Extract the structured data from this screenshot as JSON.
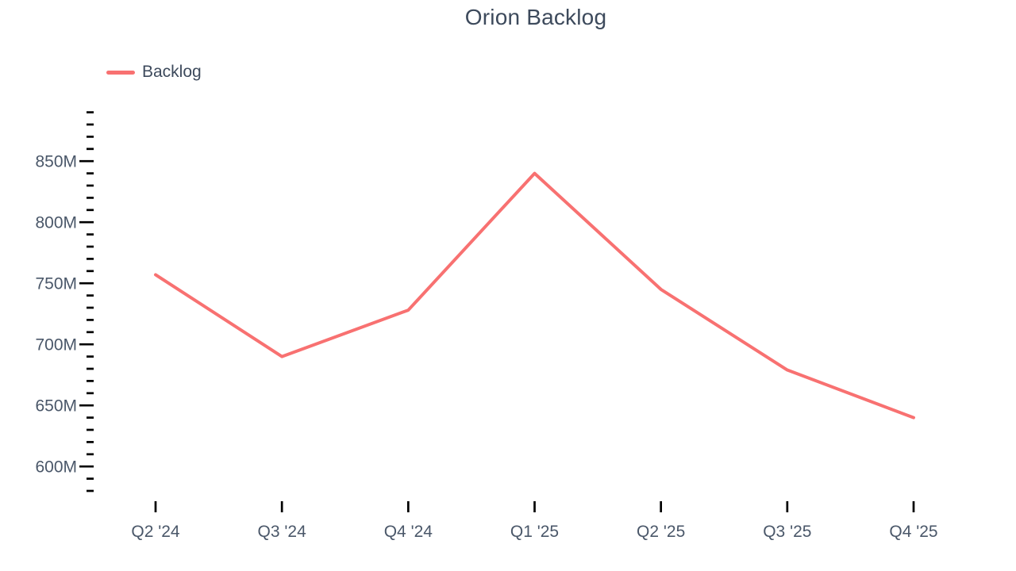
{
  "title": "Orion Backlog",
  "legend": [
    {
      "label": "Backlog"
    }
  ],
  "chart_data": {
    "type": "line",
    "title": "Orion Backlog",
    "x": [
      "Q2 '24",
      "Q3 '24",
      "Q4 '24",
      "Q1 '25",
      "Q2 '25",
      "Q3 '25",
      "Q4 '25"
    ],
    "series": [
      {
        "name": "Backlog",
        "values": [
          757,
          690,
          728,
          840,
          745,
          679,
          640
        ]
      }
    ],
    "unit": "M",
    "ylim": [
      580,
      890
    ],
    "ytick_major_values": [
      600,
      650,
      700,
      750,
      800,
      850
    ],
    "ytick_major_labels": [
      "600M",
      "650M",
      "700M",
      "750M",
      "800M",
      "850M"
    ],
    "y_minor_step": 10,
    "grid": false,
    "legend_position": "top-left",
    "colors": {
      "line": "#f87171",
      "title_text": "#3d4a5c",
      "axis_text": "#4a5769",
      "tick": "#000000",
      "background": "#ffffff"
    }
  }
}
